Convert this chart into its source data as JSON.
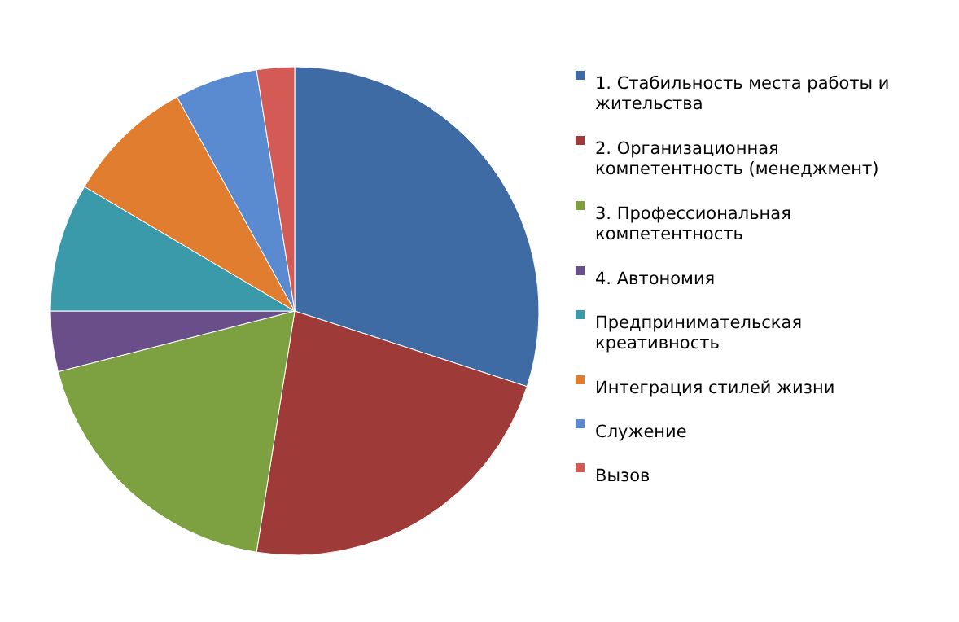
{
  "chart_data": {
    "type": "pie",
    "categories": [
      "1. Стабильность места работы и жительства",
      "2. Организационная компетентность (менеджмент)",
      "3. Профессиональная компетентность",
      "4. Автономия",
      "Предпринимательская креативность",
      "Интеграция стилей жизни",
      "Служение",
      "Вызов"
    ],
    "values": [
      30,
      22.5,
      18.5,
      4,
      8.5,
      8.5,
      5.5,
      2.5
    ],
    "colors": [
      "#3e6ba3",
      "#9e3b38",
      "#7da041",
      "#6a4e8a",
      "#3b9aaa",
      "#e07d2e",
      "#5a8ad0",
      "#d45a55"
    ],
    "legend": "right"
  }
}
